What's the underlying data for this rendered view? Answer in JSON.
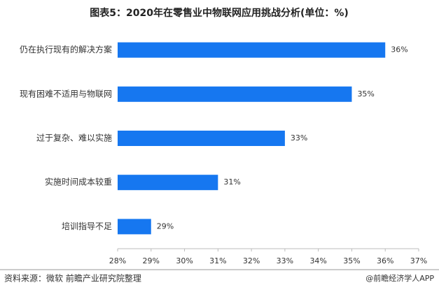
{
  "chart_data": {
    "type": "bar",
    "orientation": "horizontal",
    "title": "图表5：2020年在零售业中物联网应用挑战分析(单位：%)",
    "categories": [
      "仍在执行现有的解决方案",
      "现有困难不适用与物联网",
      "过于复杂、难以实施",
      "实施时间成本较重",
      "培训指导不足"
    ],
    "values": [
      36,
      35,
      33,
      31,
      29
    ],
    "value_labels": [
      "36%",
      "35%",
      "33%",
      "31%",
      "29%"
    ],
    "color": "#1677f0",
    "xlim": [
      28,
      37
    ],
    "xticks": [
      {
        "value": 28,
        "label": "28%"
      },
      {
        "value": 29,
        "label": "29%"
      },
      {
        "value": 30,
        "label": "30%"
      },
      {
        "value": 31,
        "label": "31%"
      },
      {
        "value": 32,
        "label": "32%"
      },
      {
        "value": 33,
        "label": "33%"
      },
      {
        "value": 34,
        "label": "34%"
      },
      {
        "value": 35,
        "label": "35%"
      },
      {
        "value": 36,
        "label": "36%"
      },
      {
        "value": 37,
        "label": "37%"
      }
    ],
    "source": "资料来源：微软 前瞻产业研究院整理",
    "credit": "@前瞻经济学人APP"
  }
}
